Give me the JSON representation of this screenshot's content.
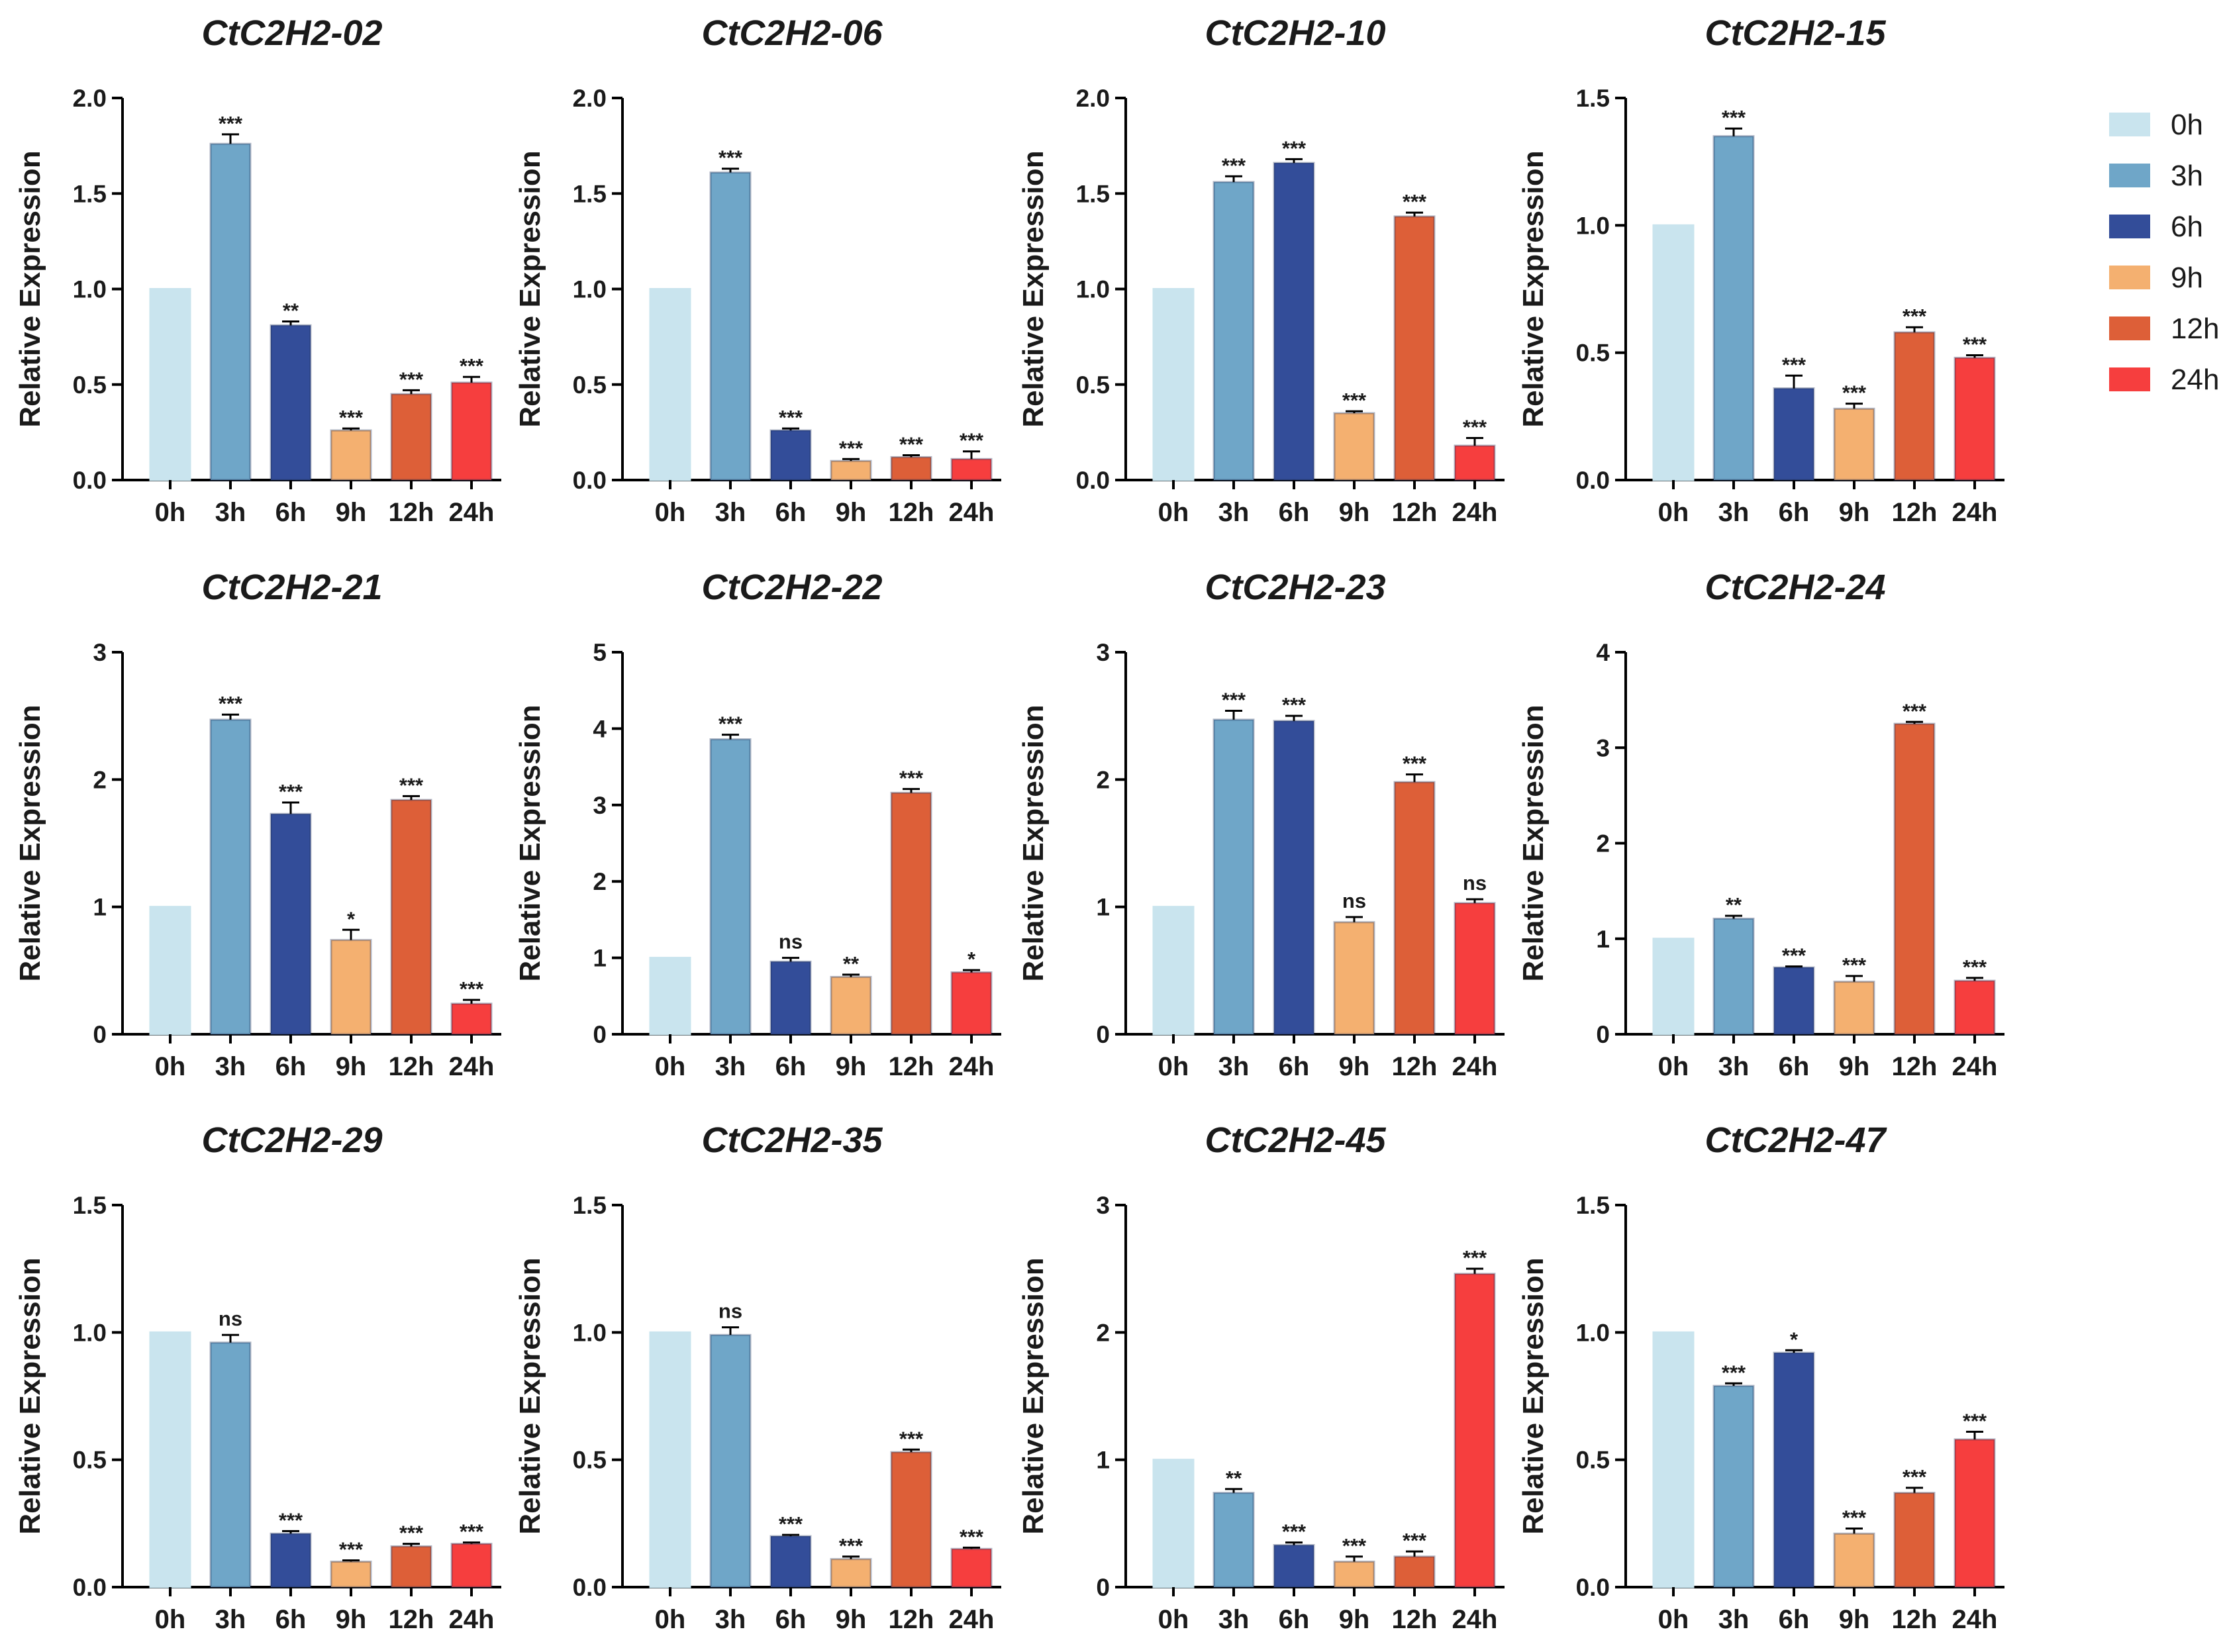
{
  "legend": {
    "entries": [
      {
        "label": "0h",
        "color": "#c9e4ee"
      },
      {
        "label": "3h",
        "color": "#6fa6c8"
      },
      {
        "label": "6h",
        "color": "#334d99"
      },
      {
        "label": "9h",
        "color": "#f4b070"
      },
      {
        "label": "12h",
        "color": "#dd5f38"
      },
      {
        "label": "24h",
        "color": "#f63e3e"
      }
    ]
  },
  "chart_data": [
    {
      "type": "bar",
      "title": "CtC2H2-02",
      "ylabel": "Relative Expression",
      "categories": [
        "0h",
        "3h",
        "6h",
        "9h",
        "12h",
        "24h"
      ],
      "values": [
        1.0,
        1.76,
        0.81,
        0.26,
        0.45,
        0.51
      ],
      "errors": [
        0,
        0.05,
        0.02,
        0.01,
        0.02,
        0.03
      ],
      "significance": [
        "",
        "***",
        "**",
        "***",
        "***",
        "***"
      ],
      "ylim": [
        0,
        2.0
      ],
      "yticks": [
        "0.0",
        "0.5",
        "1.0",
        "1.5",
        "2.0"
      ]
    },
    {
      "type": "bar",
      "title": "CtC2H2-06",
      "ylabel": "Relative Expression",
      "categories": [
        "0h",
        "3h",
        "6h",
        "9h",
        "12h",
        "24h"
      ],
      "values": [
        1.0,
        1.61,
        0.26,
        0.1,
        0.12,
        0.11
      ],
      "errors": [
        0,
        0.02,
        0.01,
        0.01,
        0.01,
        0.04
      ],
      "significance": [
        "",
        "***",
        "***",
        "***",
        "***",
        "***"
      ],
      "ylim": [
        0,
        2.0
      ],
      "yticks": [
        "0.0",
        "0.5",
        "1.0",
        "1.5",
        "2.0"
      ]
    },
    {
      "type": "bar",
      "title": "CtC2H2-10",
      "ylabel": "Relative Expression",
      "categories": [
        "0h",
        "3h",
        "6h",
        "9h",
        "12h",
        "24h"
      ],
      "values": [
        1.0,
        1.56,
        1.66,
        0.35,
        1.38,
        0.18
      ],
      "errors": [
        0,
        0.03,
        0.02,
        0.01,
        0.02,
        0.04
      ],
      "significance": [
        "",
        "***",
        "***",
        "***",
        "***",
        "***"
      ],
      "ylim": [
        0,
        2.0
      ],
      "yticks": [
        "0.0",
        "0.5",
        "1.0",
        "1.5",
        "2.0"
      ]
    },
    {
      "type": "bar",
      "title": "CtC2H2-15",
      "ylabel": "Relative Expression",
      "categories": [
        "0h",
        "3h",
        "6h",
        "9h",
        "12h",
        "24h"
      ],
      "values": [
        1.0,
        1.35,
        0.36,
        0.28,
        0.58,
        0.48
      ],
      "errors": [
        0,
        0.03,
        0.05,
        0.02,
        0.02,
        0.01
      ],
      "significance": [
        "",
        "***",
        "***",
        "***",
        "***",
        "***"
      ],
      "ylim": [
        0,
        1.5
      ],
      "yticks": [
        "0.0",
        "0.5",
        "1.0",
        "1.5"
      ]
    },
    {
      "type": "bar",
      "title": "CtC2H2-21",
      "ylabel": "Relative Expression",
      "categories": [
        "0h",
        "3h",
        "6h",
        "9h",
        "12h",
        "24h"
      ],
      "values": [
        1.0,
        2.47,
        1.73,
        0.74,
        1.84,
        0.24
      ],
      "errors": [
        0,
        0.04,
        0.09,
        0.08,
        0.03,
        0.03
      ],
      "significance": [
        "",
        "***",
        "***",
        "*",
        "***",
        "***"
      ],
      "ylim": [
        0,
        3
      ],
      "yticks": [
        "0",
        "1",
        "2",
        "3"
      ]
    },
    {
      "type": "bar",
      "title": "CtC2H2-22",
      "ylabel": "Relative Expression",
      "categories": [
        "0h",
        "3h",
        "6h",
        "9h",
        "12h",
        "24h"
      ],
      "values": [
        1.0,
        3.86,
        0.95,
        0.75,
        3.16,
        0.81
      ],
      "errors": [
        0,
        0.06,
        0.05,
        0.03,
        0.05,
        0.03
      ],
      "significance": [
        "",
        "***",
        "ns",
        "**",
        "***",
        "*"
      ],
      "ylim": [
        0,
        5
      ],
      "yticks": [
        "0",
        "1",
        "2",
        "3",
        "4",
        "5"
      ]
    },
    {
      "type": "bar",
      "title": "CtC2H2-23",
      "ylabel": "Relative Expression",
      "categories": [
        "0h",
        "3h",
        "6h",
        "9h",
        "12h",
        "24h"
      ],
      "values": [
        1.0,
        2.47,
        2.46,
        0.88,
        1.98,
        1.03
      ],
      "errors": [
        0,
        0.07,
        0.04,
        0.04,
        0.06,
        0.03
      ],
      "significance": [
        "",
        "***",
        "***",
        "ns",
        "***",
        "ns"
      ],
      "ylim": [
        0,
        3
      ],
      "yticks": [
        "0",
        "1",
        "2",
        "3"
      ]
    },
    {
      "type": "bar",
      "title": "CtC2H2-24",
      "ylabel": "Relative Expression",
      "categories": [
        "0h",
        "3h",
        "6h",
        "9h",
        "12h",
        "24h"
      ],
      "values": [
        1.0,
        1.21,
        0.7,
        0.55,
        3.25,
        0.56
      ],
      "errors": [
        0,
        0.03,
        0.01,
        0.06,
        0.02,
        0.03
      ],
      "significance": [
        "",
        "**",
        "***",
        "***",
        "***",
        "***"
      ],
      "ylim": [
        0,
        4
      ],
      "yticks": [
        "0",
        "1",
        "2",
        "3",
        "4"
      ]
    },
    {
      "type": "bar",
      "title": "CtC2H2-29",
      "ylabel": "Relative Expression",
      "categories": [
        "0h",
        "3h",
        "6h",
        "9h",
        "12h",
        "24h"
      ],
      "values": [
        1.0,
        0.96,
        0.21,
        0.1,
        0.16,
        0.17
      ],
      "errors": [
        0,
        0.03,
        0.01,
        0.005,
        0.01,
        0.005
      ],
      "significance": [
        "",
        "ns",
        "***",
        "***",
        "***",
        "***"
      ],
      "ylim": [
        0,
        1.5
      ],
      "yticks": [
        "0.0",
        "0.5",
        "1.0",
        "1.5"
      ]
    },
    {
      "type": "bar",
      "title": "CtC2H2-35",
      "ylabel": "Relative Expression",
      "categories": [
        "0h",
        "3h",
        "6h",
        "9h",
        "12h",
        "24h"
      ],
      "values": [
        1.0,
        0.99,
        0.2,
        0.11,
        0.53,
        0.15
      ],
      "errors": [
        0,
        0.03,
        0.005,
        0.01,
        0.01,
        0.005
      ],
      "significance": [
        "",
        "ns",
        "***",
        "***",
        "***",
        "***"
      ],
      "ylim": [
        0,
        1.5
      ],
      "yticks": [
        "0.0",
        "0.5",
        "1.0",
        "1.5"
      ]
    },
    {
      "type": "bar",
      "title": "CtC2H2-45",
      "ylabel": "Relative Expression",
      "categories": [
        "0h",
        "3h",
        "6h",
        "9h",
        "12h",
        "24h"
      ],
      "values": [
        1.0,
        0.74,
        0.33,
        0.2,
        0.24,
        2.46
      ],
      "errors": [
        0,
        0.03,
        0.02,
        0.04,
        0.04,
        0.04
      ],
      "significance": [
        "",
        "**",
        "***",
        "***",
        "***",
        "***"
      ],
      "ylim": [
        0,
        3
      ],
      "yticks": [
        "0",
        "1",
        "2",
        "3"
      ]
    },
    {
      "type": "bar",
      "title": "CtC2H2-47",
      "ylabel": "Relative Expression",
      "categories": [
        "0h",
        "3h",
        "6h",
        "9h",
        "12h",
        "24h"
      ],
      "values": [
        1.0,
        0.79,
        0.92,
        0.21,
        0.37,
        0.58
      ],
      "errors": [
        0,
        0.01,
        0.01,
        0.02,
        0.02,
        0.03
      ],
      "significance": [
        "",
        "***",
        "*",
        "***",
        "***",
        "***"
      ],
      "ylim": [
        0,
        1.5
      ],
      "yticks": [
        "0.0",
        "0.5",
        "1.0",
        "1.5"
      ]
    }
  ]
}
